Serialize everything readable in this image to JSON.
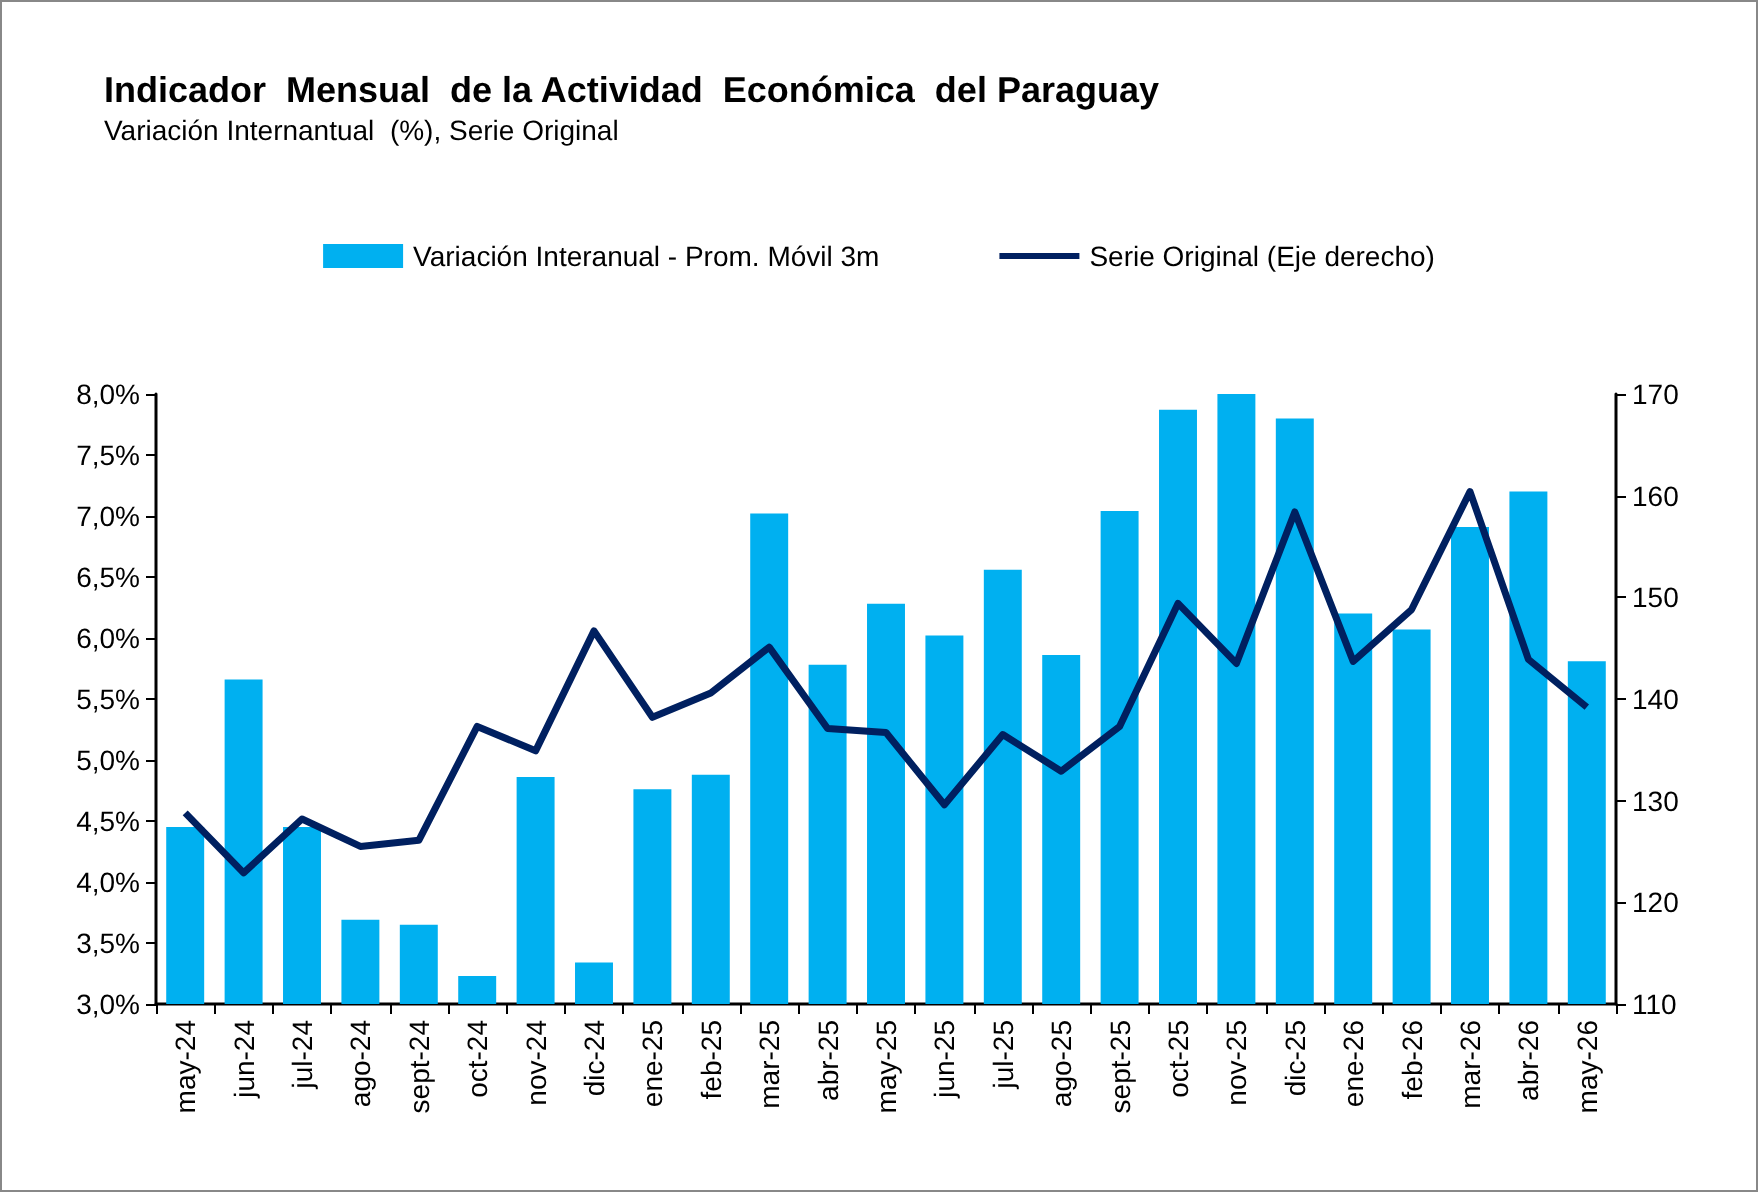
{
  "chart_data": {
    "type": "bar",
    "title": "Indicador  Mensual  de la Actividad  Económica  del Paraguay",
    "subtitle": "Variación Internantual  (%), Serie Original",
    "categories": [
      "may-24",
      "jun-24",
      "jul-24",
      "ago-24",
      "sept-24",
      "oct-24",
      "nov-24",
      "dic-24",
      "ene-25",
      "feb-25",
      "mar-25",
      "abr-25",
      "may-25",
      "jun-25",
      "jul-25",
      "ago-25",
      "sept-25",
      "oct-25",
      "nov-25",
      "dic-25",
      "ene-26",
      "feb-26",
      "mar-26",
      "abr-26",
      "may-26"
    ],
    "series": [
      {
        "name": "Variación Interanual - Prom. Móvil 3m",
        "color": "#00b0f0",
        "values": [
          4.45,
          5.66,
          4.45,
          3.69,
          3.65,
          3.23,
          4.86,
          3.34,
          4.76,
          4.88,
          7.02,
          5.78,
          6.28,
          6.02,
          6.56,
          5.86,
          7.04,
          7.87,
          8.0,
          7.8,
          6.2,
          6.07,
          6.91,
          7.2,
          5.81
        ]
      },
      {
        "name": "Serie Original (Eje derecho)",
        "type": "line",
        "axis": "y2",
        "color": "#002060",
        "values": [
          128.8,
          122.9,
          128.2,
          125.5,
          126.1,
          137.3,
          134.9,
          146.7,
          138.2,
          140.6,
          145.1,
          137.1,
          136.7,
          129.6,
          136.5,
          132.9,
          137.3,
          149.4,
          143.5,
          158.4,
          143.7,
          148.8,
          160.4,
          143.9,
          139.2
        ]
      }
    ],
    "ylim": [
      3,
      8
    ],
    "yticks": [
      {
        "value": 3,
        "label": "3,0%"
      },
      {
        "value": 3.5,
        "label": "3,5%"
      },
      {
        "value": 4,
        "label": "4,0%"
      },
      {
        "value": 4.5,
        "label": "4,5%"
      },
      {
        "value": 5,
        "label": "5,0%"
      },
      {
        "value": 5.5,
        "label": "5,5%"
      },
      {
        "value": 6,
        "label": "6,0%"
      },
      {
        "value": 6.5,
        "label": "6,5%"
      },
      {
        "value": 7,
        "label": "7,0%"
      },
      {
        "value": 7.5,
        "label": "7,5%"
      },
      {
        "value": 8,
        "label": "8,0%"
      }
    ],
    "y2lim": [
      110,
      170
    ],
    "y2ticks": [
      110,
      120,
      130,
      140,
      150,
      160,
      170
    ],
    "legend": "top",
    "grid": false,
    "marker": "none",
    "line_style": "solid"
  }
}
